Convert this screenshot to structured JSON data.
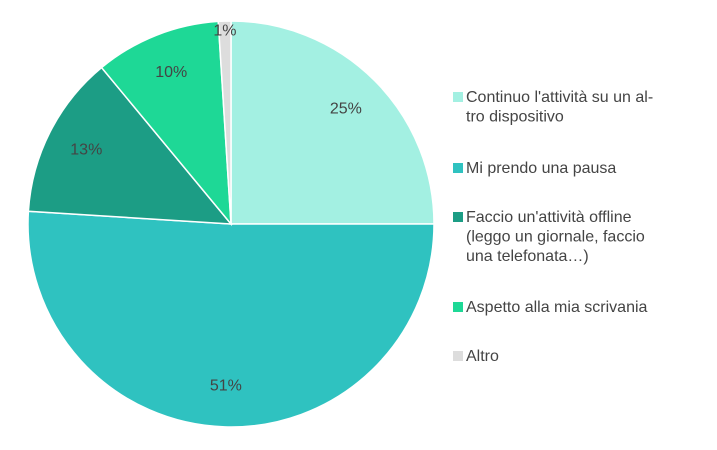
{
  "chart_data": {
    "type": "pie",
    "title": "",
    "legend_position": "right",
    "categories": [
      "Continuo l'attività su un altro dispositivo",
      "Mi prendo una pausa",
      "Faccio un'attività offline (leggo un giornale, faccio una telefonata…)",
      "Aspetto alla mia scrivania",
      "Altro"
    ],
    "values": [
      25,
      51,
      13,
      10,
      1
    ],
    "labels": [
      "25%",
      "51%",
      "13%",
      "10%",
      "1%"
    ],
    "colors": [
      "#a3f0e2",
      "#2fc2c0",
      "#1c9d85",
      "#1ed896",
      "#dddddd"
    ],
    "legend_lines": [
      [
        "Continuo l'attività su un al-",
        "tro dispositivo"
      ],
      [
        "Mi prendo una pausa"
      ],
      [
        "Faccio un'attività offline",
        "(leggo un giornale, faccio",
        "una telefonata…)"
      ],
      [
        "Aspetto alla mia scrivania"
      ],
      [
        "Altro"
      ]
    ]
  }
}
